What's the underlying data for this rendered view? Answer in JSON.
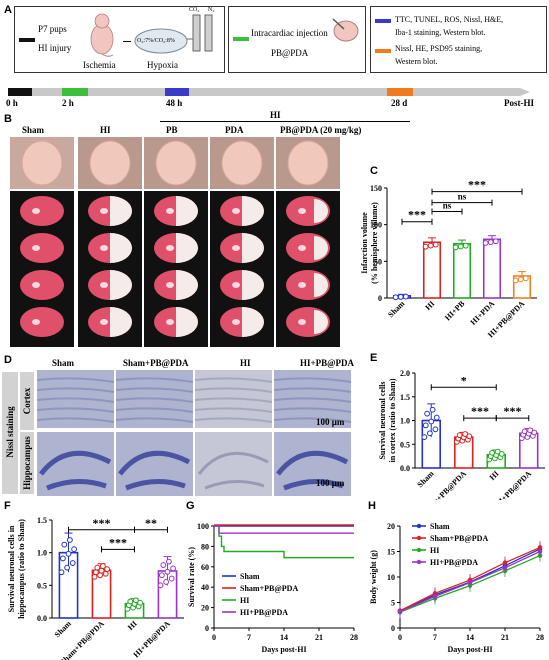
{
  "panel_letters": {
    "a": "A",
    "b": "B",
    "c": "C",
    "d": "D",
    "e": "E",
    "f": "F",
    "g": "G",
    "h": "H"
  },
  "panelA": {
    "p7": "P7 pups",
    "hi_injury": "HI injury",
    "ischemia": "Ischemia",
    "hypoxia": "Hypoxia",
    "gas": "O₂:7%/CO₂:8%",
    "co2": "CO₂",
    "n2": "N₂",
    "injection": "Intracardiac injection",
    "pbpda": "PB@PDA",
    "legend1": "TTC, TUNEL, ROS,  Nissl, H&E,",
    "legend1b": "Iba-1 staining, Western blot.",
    "legend2": "Nissl, HE, PSD95 staining,",
    "legend2b": "Western blot.",
    "timeline": [
      "0 h",
      "2 h",
      "48 h",
      "28 d",
      "Post-HI"
    ],
    "colors": {
      "black": "#111111",
      "green": "#3cc03c",
      "blue": "#3a3ac8",
      "orange": "#f07a1e",
      "grey": "#c8c8c8"
    }
  },
  "panelB": {
    "hi_header": "HI",
    "groups": [
      "Sham",
      "HI",
      "PB",
      "PDA",
      "PB@PDA (20 mg/kg)"
    ]
  },
  "panelD": {
    "groups": [
      "Sham",
      "Sham+PB@PDA",
      "HI",
      "HI+PB@PDA"
    ],
    "row_title": "Nissl staining",
    "rows": [
      "Cortex",
      "Hippocampus"
    ],
    "scale": "100 μm"
  },
  "chart_data": [
    {
      "panel": "C",
      "type": "bar",
      "categories": [
        "Sham",
        "HI",
        "HI+PB",
        "HI+PDA",
        "HI+PB@PDA"
      ],
      "values": [
        3,
        76,
        74,
        80,
        30
      ],
      "errors": [
        2,
        6,
        5,
        5,
        6
      ],
      "colors": [
        "#2233cc",
        "#e02020",
        "#22aa22",
        "#9933cc",
        "#f08020"
      ],
      "ylabel": "Infarction volume\n(% hemisphere volume)",
      "ylim": [
        0,
        150
      ],
      "yticks": [
        0,
        50,
        100,
        150
      ],
      "sig": [
        "***",
        "ns",
        "ns",
        "***"
      ]
    },
    {
      "panel": "E",
      "type": "bar",
      "categories": [
        "Sham",
        "Sham+PB@PDA",
        "HI",
        "HI+PB@PDA"
      ],
      "values": [
        1.0,
        0.65,
        0.28,
        0.73
      ],
      "errors": [
        0.35,
        0.1,
        0.1,
        0.1
      ],
      "colors": [
        "#2233cc",
        "#e02020",
        "#22aa22",
        "#9933cc"
      ],
      "ylabel": "Survival neuronal cells\nin cortex (ratio to Sham)",
      "ylim": [
        0,
        2.0
      ],
      "yticks": [
        0.0,
        0.5,
        1.0,
        1.5,
        2.0
      ],
      "sig": [
        "*",
        "***",
        "***"
      ]
    },
    {
      "panel": "F",
      "type": "bar",
      "categories": [
        "Sham",
        "Sham+PB@PDA",
        "HI",
        "HI+PB@PDA"
      ],
      "values": [
        1.0,
        0.73,
        0.22,
        0.72
      ],
      "errors": [
        0.3,
        0.1,
        0.08,
        0.22
      ],
      "colors": [
        "#2233cc",
        "#e02020",
        "#22aa22",
        "#9933cc"
      ],
      "ylabel": "Survival neuronal cells in\nhippocampus (ratio to Sham)",
      "ylim": [
        0,
        1.5
      ],
      "yticks": [
        0.0,
        0.5,
        1.0,
        1.5
      ],
      "sig": [
        "***",
        "***",
        "**"
      ]
    },
    {
      "panel": "G",
      "type": "line",
      "xlabel": "Days post-HI",
      "ylabel": "Survival rate (%)",
      "xlim": [
        0,
        28
      ],
      "ylim": [
        0,
        100
      ],
      "xticks": [
        0,
        7,
        14,
        21,
        28
      ],
      "yticks": [
        0,
        20,
        40,
        60,
        80,
        100
      ],
      "series": [
        {
          "name": "Sham",
          "color": "#2233cc",
          "steps": [
            [
              0,
              100
            ],
            [
              28,
              100
            ]
          ]
        },
        {
          "name": "Sham+PB@PDA",
          "color": "#e02020",
          "steps": [
            [
              0,
              100
            ],
            [
              28,
              100
            ]
          ]
        },
        {
          "name": "HI",
          "color": "#22aa22",
          "steps": [
            [
              0,
              100
            ],
            [
              1,
              90
            ],
            [
              1.5,
              80
            ],
            [
              2,
              75
            ],
            [
              14,
              75
            ],
            [
              14,
              69
            ],
            [
              28,
              69
            ]
          ]
        },
        {
          "name": "HI+PB@PDA",
          "color": "#9933cc",
          "steps": [
            [
              0,
              100
            ],
            [
              1,
              93
            ],
            [
              28,
              93
            ]
          ]
        }
      ]
    },
    {
      "panel": "H",
      "type": "line",
      "xlabel": "Days post-HI",
      "ylabel": "Body weight (g)",
      "xlim": [
        0,
        28
      ],
      "ylim": [
        0,
        20
      ],
      "xticks": [
        0,
        7,
        14,
        21,
        28
      ],
      "yticks": [
        0,
        5,
        10,
        15,
        20
      ],
      "x": [
        0,
        7,
        14,
        21,
        28
      ],
      "series": [
        {
          "name": "Sham",
          "color": "#2233cc",
          "values": [
            3.3,
            6.5,
            9.0,
            12.2,
            15.5
          ]
        },
        {
          "name": "Sham+PB@PDA",
          "color": "#e02020",
          "values": [
            3.4,
            6.8,
            9.4,
            12.8,
            15.8
          ]
        },
        {
          "name": "HI",
          "color": "#22aa22",
          "values": [
            3.1,
            5.8,
            8.3,
            11.2,
            14.2
          ]
        },
        {
          "name": "HI+PB@PDA",
          "color": "#9933cc",
          "values": [
            3.2,
            6.2,
            8.9,
            11.8,
            15.0
          ]
        }
      ]
    }
  ]
}
